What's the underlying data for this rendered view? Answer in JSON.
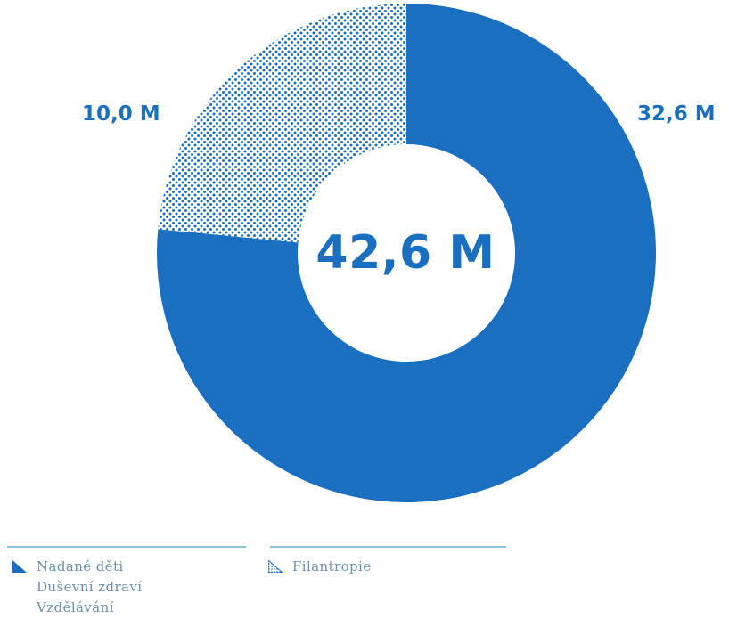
{
  "chart_data": {
    "type": "pie",
    "donut": true,
    "total_label": "42,6 M",
    "slices": [
      {
        "value": 32.6,
        "label": "32,6 M",
        "color": "#1a6fc0",
        "pattern": "solid",
        "legend": [
          "Nadané děti",
          "Duševní zdraví",
          "Vzdělávání"
        ]
      },
      {
        "value": 10.0,
        "label": "10,0 M",
        "color": "#1a6fc0",
        "pattern": "dotted",
        "legend": [
          "Filantropie"
        ]
      }
    ]
  }
}
